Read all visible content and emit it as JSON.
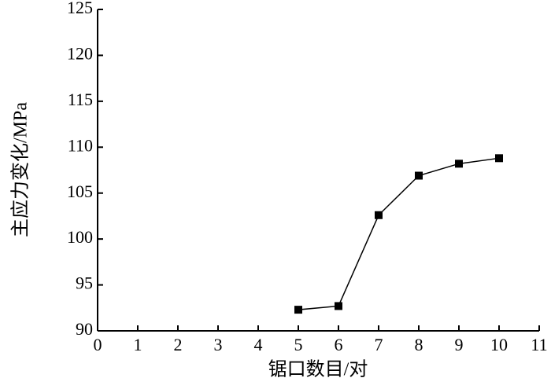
{
  "chart_data": {
    "type": "line",
    "x_label": "锯口数目/对",
    "y_label": "主应力变化/MPa",
    "x": [
      5,
      6,
      7,
      8,
      9,
      10
    ],
    "series": [
      {
        "color": "#000000",
        "values": [
          92.3,
          92.7,
          102.6,
          106.9,
          108.2,
          108.8
        ]
      }
    ],
    "xlim": [
      0,
      11
    ],
    "xticks": [
      0,
      1,
      2,
      3,
      4,
      5,
      6,
      7,
      8,
      9,
      10,
      11
    ],
    "ylim": [
      90,
      125
    ],
    "yticks": [
      90,
      95,
      100,
      105,
      110,
      115,
      120,
      125
    ],
    "grid": false
  }
}
